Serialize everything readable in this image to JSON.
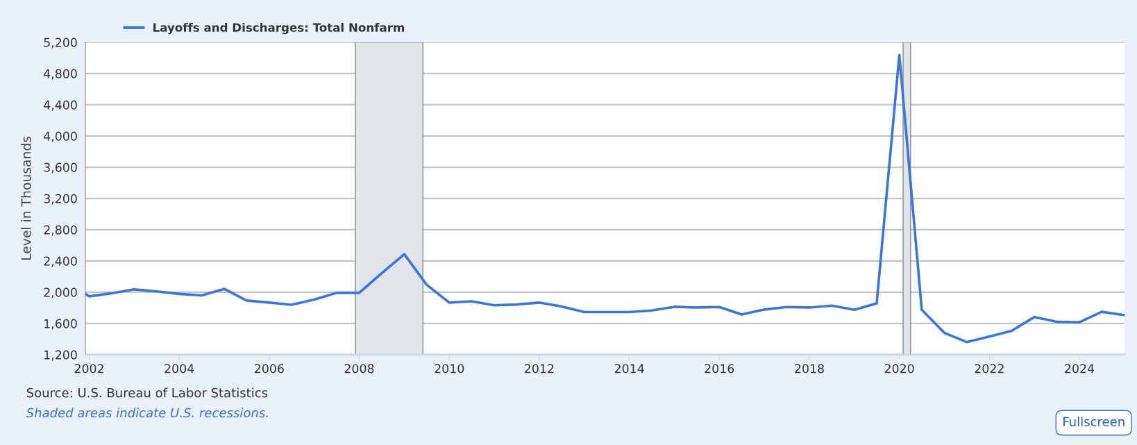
{
  "chart_data": {
    "type": "line",
    "ylabel": "Level in Thousands",
    "x": [
      "2001-12",
      "2002-01",
      "2002-07",
      "2003-01",
      "2003-07",
      "2004-01",
      "2004-07",
      "2005-01",
      "2005-07",
      "2006-01",
      "2006-07",
      "2007-01",
      "2007-07",
      "2008-01",
      "2008-07",
      "2009-01",
      "2009-07",
      "2010-01",
      "2010-07",
      "2011-01",
      "2011-07",
      "2012-01",
      "2012-07",
      "2013-01",
      "2013-07",
      "2014-01",
      "2014-07",
      "2015-01",
      "2015-07",
      "2016-01",
      "2016-07",
      "2017-01",
      "2017-07",
      "2018-01",
      "2018-07",
      "2019-01",
      "2019-07",
      "2020-01",
      "2020-07",
      "2021-01",
      "2021-07",
      "2022-01",
      "2022-07",
      "2023-01",
      "2023-07",
      "2024-01",
      "2024-07",
      "2025-01"
    ],
    "series": [
      {
        "name": "Layoffs and Discharges: Total Nonfarm",
        "color": "#3a74e0",
        "values": [
          1978,
          1947,
          1985,
          2036,
          2010,
          1978,
          1959,
          2042,
          1893,
          1867,
          1839,
          1905,
          1991,
          1991,
          2242,
          2487,
          2096,
          1867,
          1883,
          1832,
          1842,
          1867,
          1816,
          1746,
          1746,
          1746,
          1766,
          1813,
          1804,
          1810,
          1715,
          1778,
          1810,
          1804,
          1828,
          1774,
          1856,
          5038,
          1774,
          1478,
          1362,
          1432,
          1505,
          1682,
          1621,
          1615,
          1749,
          1706
        ]
      }
    ],
    "xlim": [
      "2001-12",
      "2025-01"
    ],
    "xticks": [
      {
        "value": "2002-01",
        "label": "2002"
      },
      {
        "value": "2004-01",
        "label": "2004"
      },
      {
        "value": "2006-01",
        "label": "2006"
      },
      {
        "value": "2008-01",
        "label": "2008"
      },
      {
        "value": "2010-01",
        "label": "2010"
      },
      {
        "value": "2012-01",
        "label": "2012"
      },
      {
        "value": "2014-01",
        "label": "2014"
      },
      {
        "value": "2016-01",
        "label": "2016"
      },
      {
        "value": "2018-01",
        "label": "2018"
      },
      {
        "value": "2020-01",
        "label": "2020"
      },
      {
        "value": "2022-01",
        "label": "2022"
      },
      {
        "value": "2024-01",
        "label": "2024"
      }
    ],
    "ylim": [
      1200,
      5200
    ],
    "yticks": [
      {
        "value": 1200,
        "label": "1,200"
      },
      {
        "value": 1600,
        "label": "1,600"
      },
      {
        "value": 2000,
        "label": "2,000"
      },
      {
        "value": 2400,
        "label": "2,400"
      },
      {
        "value": 2800,
        "label": "2,800"
      },
      {
        "value": 3200,
        "label": "3,200"
      },
      {
        "value": 3600,
        "label": "3,600"
      },
      {
        "value": 4000,
        "label": "4,000"
      },
      {
        "value": 4400,
        "label": "4,400"
      },
      {
        "value": 4800,
        "label": "4,800"
      },
      {
        "value": 5200,
        "label": "5,200"
      }
    ],
    "bands": [
      {
        "axis": "x",
        "from": "2007-12",
        "to": "2009-06",
        "color": "#e1e5ea"
      },
      {
        "axis": "x",
        "from": "2020-02",
        "to": "2020-04",
        "color": "#e1e5ea"
      }
    ],
    "grid": "y",
    "legend": "top left",
    "marker": "none",
    "line_style": "solid",
    "annotations": [
      "Source: U.S. Bureau of Labor Statistics",
      "Shaded areas indicate U.S. recessions.",
      "Fullscreen"
    ]
  }
}
